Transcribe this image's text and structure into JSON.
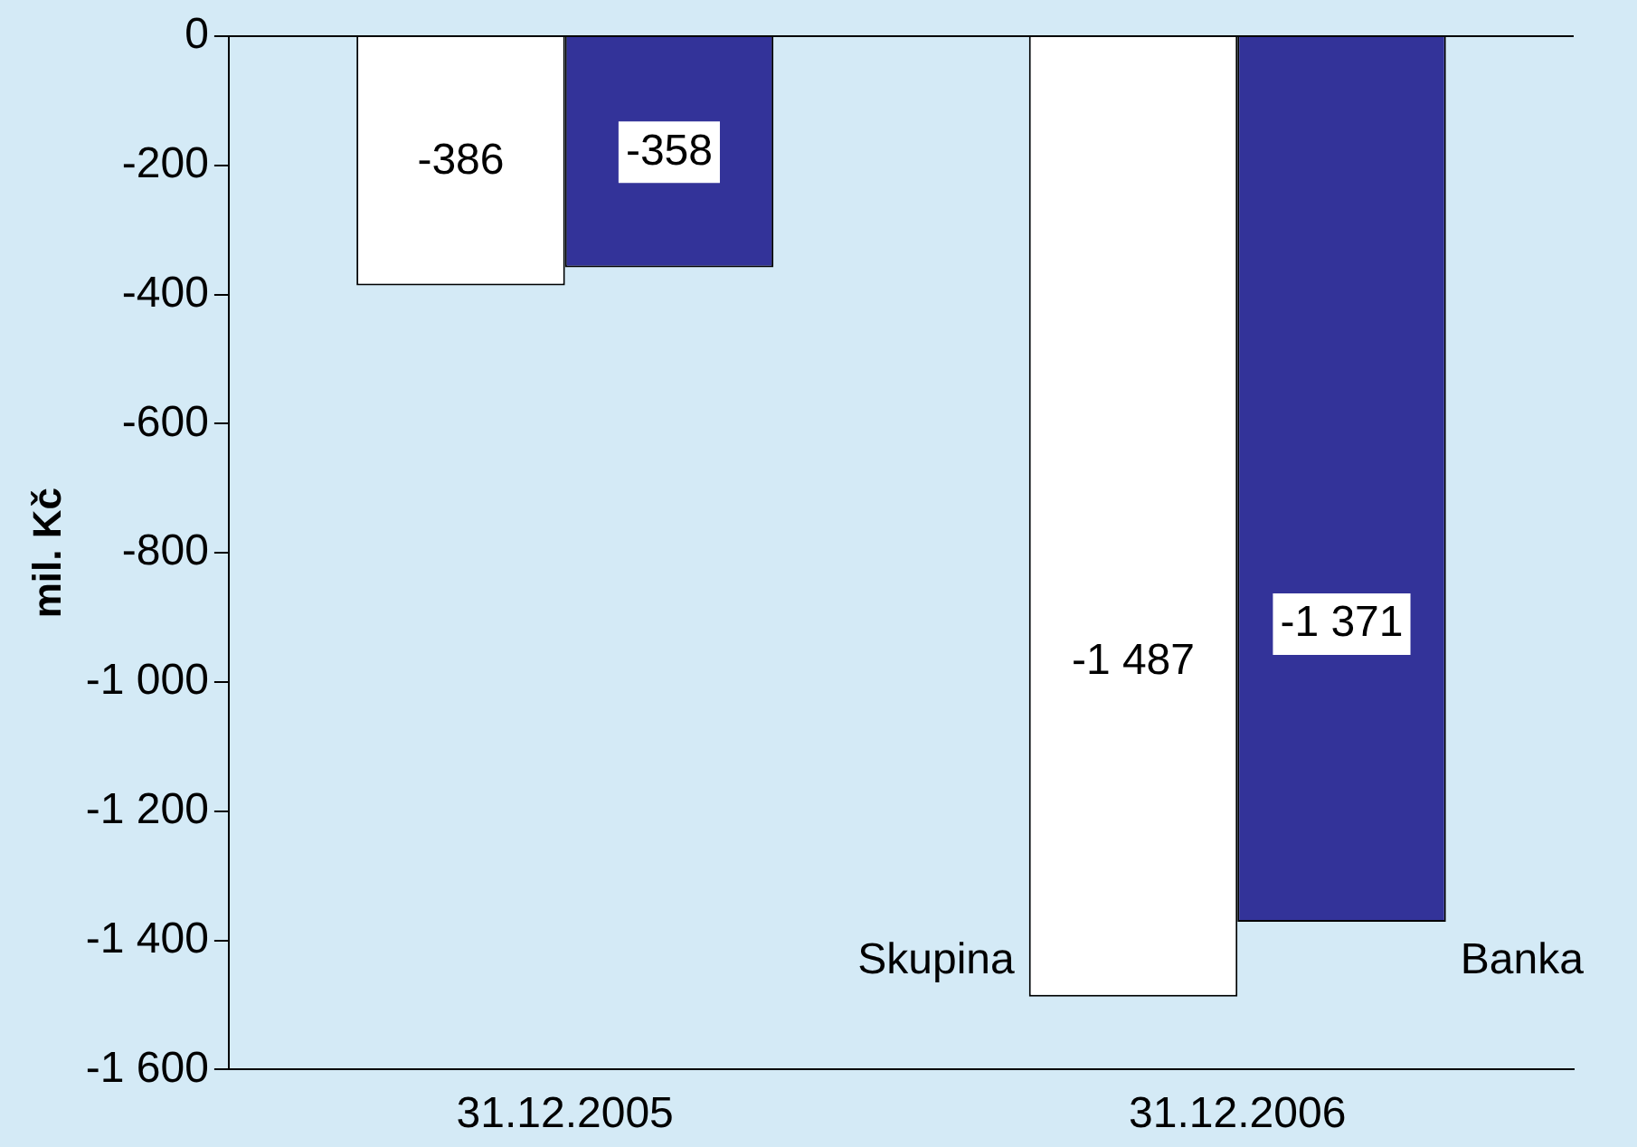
{
  "chart_data": {
    "type": "bar",
    "ylabel": "mil. Kč",
    "categories": [
      "31.12.2005",
      "31.12.2006"
    ],
    "series": [
      {
        "name": "Skupina",
        "color": "#ffffff",
        "values": [
          -386,
          -1487
        ],
        "value_labels": [
          "-386",
          "-1 487"
        ]
      },
      {
        "name": "Banka",
        "color": "#333399",
        "values": [
          -358,
          -1371
        ],
        "value_labels": [
          "-358",
          "-1 371"
        ]
      }
    ],
    "ylim": [
      -1600,
      0
    ],
    "yticks": [
      {
        "value": -1600,
        "label": "-1 600"
      },
      {
        "value": -1400,
        "label": "-1 400"
      },
      {
        "value": -1200,
        "label": "-1 200"
      },
      {
        "value": -1000,
        "label": "-1 000"
      },
      -800,
      -600,
      -400,
      -200,
      0
    ],
    "grid": false,
    "legend": false
  }
}
